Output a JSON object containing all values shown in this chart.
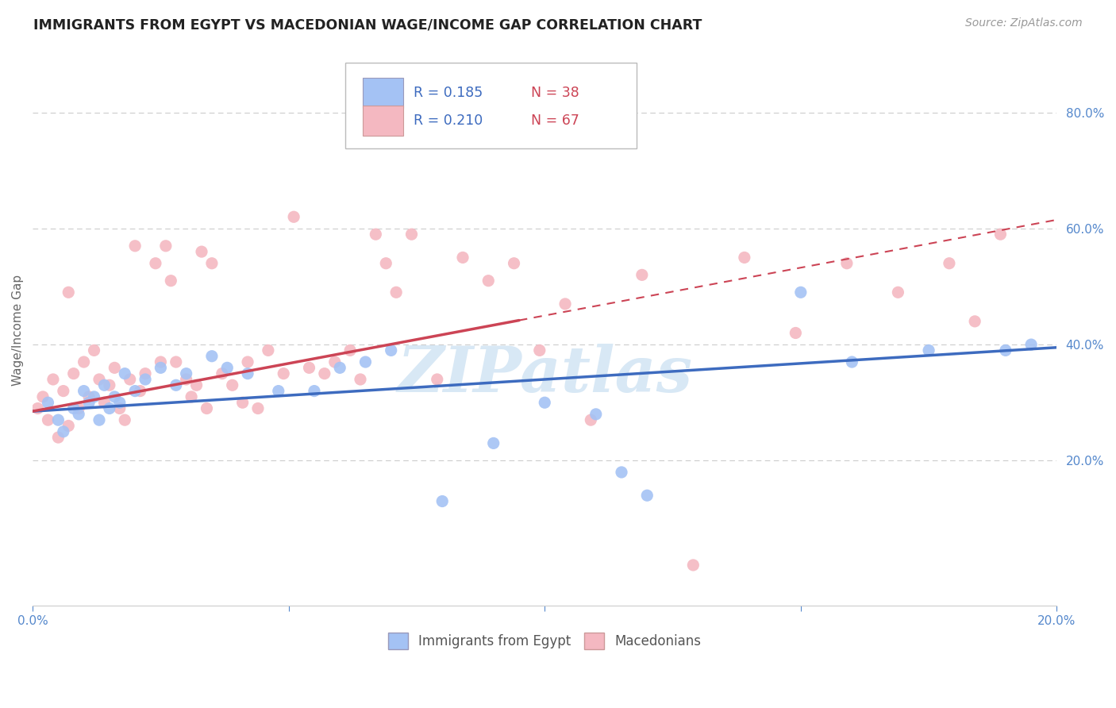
{
  "title": "IMMIGRANTS FROM EGYPT VS MACEDONIAN WAGE/INCOME GAP CORRELATION CHART",
  "source": "Source: ZipAtlas.com",
  "ylabel": "Wage/Income Gap",
  "xlim": [
    0.0,
    0.2
  ],
  "ylim": [
    -0.05,
    0.9
  ],
  "yticks": [
    0.2,
    0.4,
    0.6,
    0.8
  ],
  "ytick_labels": [
    "20.0%",
    "40.0%",
    "60.0%",
    "80.0%"
  ],
  "xticks": [
    0.0,
    0.05,
    0.1,
    0.15,
    0.2
  ],
  "xtick_labels": [
    "0.0%",
    "",
    "",
    "",
    "20.0%"
  ],
  "blue_r": 0.185,
  "blue_n": 38,
  "pink_r": 0.21,
  "pink_n": 67,
  "blue_color": "#a4c2f4",
  "pink_color": "#f4b8c1",
  "blue_line_color": "#3d6bbf",
  "pink_line_color": "#cc4455",
  "watermark": "ZIPatlas",
  "legend_r_color": "#3d6bbf",
  "legend_n_color": "#cc4455",
  "blue_scatter_x": [
    0.003,
    0.005,
    0.006,
    0.008,
    0.009,
    0.01,
    0.011,
    0.012,
    0.013,
    0.014,
    0.015,
    0.016,
    0.017,
    0.018,
    0.02,
    0.022,
    0.025,
    0.028,
    0.03,
    0.035,
    0.038,
    0.042,
    0.048,
    0.055,
    0.06,
    0.065,
    0.07,
    0.08,
    0.09,
    0.1,
    0.11,
    0.115,
    0.12,
    0.15,
    0.16,
    0.175,
    0.19,
    0.195
  ],
  "blue_scatter_y": [
    0.3,
    0.27,
    0.25,
    0.29,
    0.28,
    0.32,
    0.3,
    0.31,
    0.27,
    0.33,
    0.29,
    0.31,
    0.3,
    0.35,
    0.32,
    0.34,
    0.36,
    0.33,
    0.35,
    0.38,
    0.36,
    0.35,
    0.32,
    0.32,
    0.36,
    0.37,
    0.39,
    0.13,
    0.23,
    0.3,
    0.28,
    0.18,
    0.14,
    0.49,
    0.37,
    0.39,
    0.39,
    0.4
  ],
  "pink_scatter_x": [
    0.001,
    0.002,
    0.003,
    0.004,
    0.005,
    0.006,
    0.007,
    0.007,
    0.008,
    0.009,
    0.01,
    0.011,
    0.012,
    0.013,
    0.014,
    0.015,
    0.016,
    0.017,
    0.018,
    0.019,
    0.02,
    0.021,
    0.022,
    0.024,
    0.025,
    0.026,
    0.027,
    0.028,
    0.03,
    0.031,
    0.032,
    0.033,
    0.034,
    0.035,
    0.037,
    0.039,
    0.041,
    0.042,
    0.044,
    0.046,
    0.049,
    0.051,
    0.054,
    0.057,
    0.059,
    0.062,
    0.064,
    0.067,
    0.069,
    0.071,
    0.074,
    0.079,
    0.084,
    0.089,
    0.094,
    0.099,
    0.104,
    0.109,
    0.119,
    0.129,
    0.139,
    0.149,
    0.159,
    0.169,
    0.179,
    0.184,
    0.189
  ],
  "pink_scatter_y": [
    0.29,
    0.31,
    0.27,
    0.34,
    0.24,
    0.32,
    0.26,
    0.49,
    0.35,
    0.29,
    0.37,
    0.31,
    0.39,
    0.34,
    0.3,
    0.33,
    0.36,
    0.29,
    0.27,
    0.34,
    0.57,
    0.32,
    0.35,
    0.54,
    0.37,
    0.57,
    0.51,
    0.37,
    0.34,
    0.31,
    0.33,
    0.56,
    0.29,
    0.54,
    0.35,
    0.33,
    0.3,
    0.37,
    0.29,
    0.39,
    0.35,
    0.62,
    0.36,
    0.35,
    0.37,
    0.39,
    0.34,
    0.59,
    0.54,
    0.49,
    0.59,
    0.34,
    0.55,
    0.51,
    0.54,
    0.39,
    0.47,
    0.27,
    0.52,
    0.02,
    0.55,
    0.42,
    0.54,
    0.49,
    0.54,
    0.44,
    0.59
  ],
  "grid_color": "#cccccc",
  "bg_color": "#ffffff",
  "title_fontsize": 12.5,
  "axis_label_fontsize": 11,
  "tick_fontsize": 11,
  "legend_fontsize": 12,
  "source_fontsize": 10,
  "blue_line_y0": 0.285,
  "blue_line_y1": 0.395,
  "pink_line_y0": 0.285,
  "pink_line_y1": 0.615
}
